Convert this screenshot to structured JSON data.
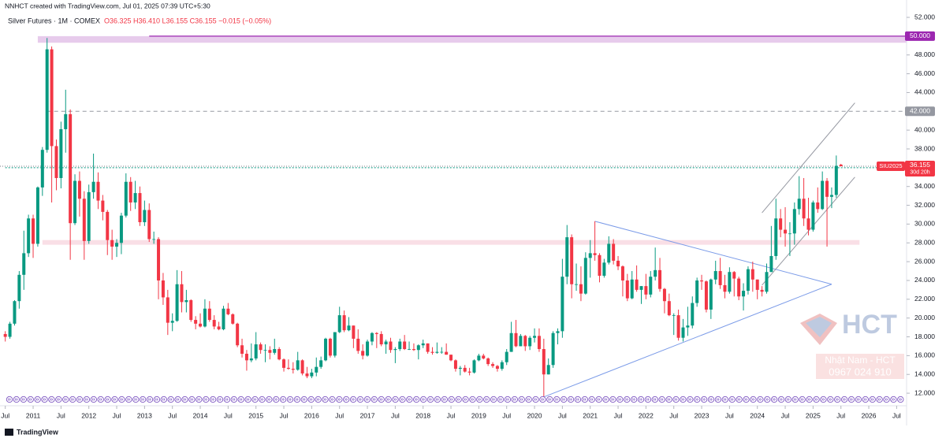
{
  "header": {
    "credit": "NNHCT created with TradingView.com, Jul 01, 2025 07:39 UTC+5:30",
    "symbol": "Silver Futures · 1M · COMEX",
    "ohlc": "O36.325 H36.410 L36.155 C36.155 −0.015 (−0.05%)"
  },
  "footer": {
    "brand": "TradingView"
  },
  "watermark": {
    "logo": "HCT",
    "name": "Nhật Nam - HCT",
    "phone": "0967 024 910"
  },
  "chart_data": {
    "type": "candlestick",
    "up_color": "#089981",
    "down_color": "#f23645",
    "x": [
      "2010-07",
      "2010-08",
      "2010-09",
      "2010-10",
      "2010-11",
      "2010-12",
      "2011-01",
      "2011-02",
      "2011-03",
      "2011-04",
      "2011-05",
      "2011-06",
      "2011-07",
      "2011-08",
      "2011-09",
      "2011-10",
      "2011-11",
      "2011-12",
      "2012-01",
      "2012-02",
      "2012-03",
      "2012-04",
      "2012-05",
      "2012-06",
      "2012-07",
      "2012-08",
      "2012-09",
      "2012-10",
      "2012-11",
      "2012-12",
      "2013-01",
      "2013-02",
      "2013-03",
      "2013-04",
      "2013-05",
      "2013-06",
      "2013-07",
      "2013-08",
      "2013-09",
      "2013-10",
      "2013-11",
      "2013-12",
      "2014-01",
      "2014-02",
      "2014-03",
      "2014-04",
      "2014-05",
      "2014-06",
      "2014-07",
      "2014-08",
      "2014-09",
      "2014-10",
      "2014-11",
      "2014-12",
      "2015-01",
      "2015-02",
      "2015-03",
      "2015-04",
      "2015-05",
      "2015-06",
      "2015-07",
      "2015-08",
      "2015-09",
      "2015-10",
      "2015-11",
      "2015-12",
      "2016-01",
      "2016-02",
      "2016-03",
      "2016-04",
      "2016-05",
      "2016-06",
      "2016-07",
      "2016-08",
      "2016-09",
      "2016-10",
      "2016-11",
      "2016-12",
      "2017-01",
      "2017-02",
      "2017-03",
      "2017-04",
      "2017-05",
      "2017-06",
      "2017-07",
      "2017-08",
      "2017-09",
      "2017-10",
      "2017-11",
      "2017-12",
      "2018-01",
      "2018-02",
      "2018-03",
      "2018-04",
      "2018-05",
      "2018-06",
      "2018-07",
      "2018-08",
      "2018-09",
      "2018-10",
      "2018-11",
      "2018-12",
      "2019-01",
      "2019-02",
      "2019-03",
      "2019-04",
      "2019-05",
      "2019-06",
      "2019-07",
      "2019-08",
      "2019-09",
      "2019-10",
      "2019-11",
      "2019-12",
      "2020-01",
      "2020-02",
      "2020-03",
      "2020-04",
      "2020-05",
      "2020-06",
      "2020-07",
      "2020-08",
      "2020-09",
      "2020-10",
      "2020-11",
      "2020-12",
      "2021-01",
      "2021-02",
      "2021-03",
      "2021-04",
      "2021-05",
      "2021-06",
      "2021-07",
      "2021-08",
      "2021-09",
      "2021-10",
      "2021-11",
      "2021-12",
      "2022-01",
      "2022-02",
      "2022-03",
      "2022-04",
      "2022-05",
      "2022-06",
      "2022-07",
      "2022-08",
      "2022-09",
      "2022-10",
      "2022-11",
      "2022-12",
      "2023-01",
      "2023-02",
      "2023-03",
      "2023-04",
      "2023-05",
      "2023-06",
      "2023-07",
      "2023-08",
      "2023-09",
      "2023-10",
      "2023-11",
      "2023-12",
      "2024-01",
      "2024-02",
      "2024-03",
      "2024-04",
      "2024-05",
      "2024-06",
      "2024-07",
      "2024-08",
      "2024-09",
      "2024-10",
      "2024-11",
      "2024-12",
      "2025-01",
      "2025-02",
      "2025-03",
      "2025-04",
      "2025-05",
      "2025-06",
      "2025-07"
    ],
    "open": [
      18.3,
      18.0,
      19.4,
      21.8,
      24.6,
      26.9,
      30.6,
      27.9,
      33.9,
      37.9,
      48.6,
      38.3,
      34.9,
      40.1,
      41.7,
      30.1,
      34.6,
      32.7,
      28.2,
      33.4,
      34.5,
      32.5,
      31.3,
      28.3,
      27.6,
      28.0,
      30.9,
      34.5,
      32.3,
      33.3,
      30.2,
      31.5,
      28.4,
      28.4,
      24.0,
      22.2,
      19.5,
      19.7,
      23.6,
      21.7,
      21.9,
      19.8,
      19.4,
      19.1,
      21.0,
      19.8,
      19.1,
      18.8,
      21.0,
      20.4,
      19.4,
      17.1,
      16.2,
      15.5,
      15.7,
      17.2,
      16.6,
      16.6,
      16.3,
      16.7,
      15.6,
      14.7,
      14.6,
      14.5,
      15.5,
      14.1,
      13.8,
      14.2,
      14.8,
      15.5,
      17.8,
      16.0,
      18.5,
      20.3,
      18.7,
      19.2,
      17.8,
      16.5,
      16.0,
      17.5,
      18.4,
      18.3,
      17.2,
      17.5,
      16.6,
      16.7,
      17.5,
      16.7,
      16.7,
      16.6,
      17.1,
      17.3,
      16.4,
      16.3,
      16.4,
      16.4,
      16.1,
      15.5,
      14.6,
      14.7,
      14.3,
      14.2,
      15.5,
      16.0,
      15.7,
      15.1,
      14.9,
      14.6,
      15.3,
      16.4,
      18.4,
      17.0,
      18.1,
      17.0,
      17.9,
      18.1,
      16.7,
      14.0,
      15.0,
      18.4,
      18.6,
      24.4,
      28.6,
      23.6,
      23.6,
      22.6,
      26.4,
      26.9,
      26.7,
      24.5,
      25.9,
      27.9,
      26.1,
      25.5,
      24.0,
      22.1,
      24.1,
      23.0,
      23.4,
      22.5,
      24.4,
      25.1,
      23.1,
      21.8,
      20.3,
      20.3,
      17.9,
      19.0,
      19.2,
      21.6,
      24.0,
      23.9,
      20.9,
      24.1,
      25.0,
      23.5,
      22.8,
      24.9,
      24.2,
      22.3,
      22.9,
      25.2,
      24.1,
      23.0,
      22.8,
      24.9,
      26.6,
      30.6,
      29.4,
      29.0,
      29.0,
      31.6,
      32.7,
      30.6,
      29.4,
      32.3,
      31.6,
      34.6,
      32.9,
      33.1,
      36.325
    ],
    "high": [
      18.6,
      19.6,
      21.9,
      25.0,
      29.3,
      31.0,
      31.0,
      34.0,
      38.2,
      49.8,
      48.9,
      39.0,
      40.9,
      44.3,
      42.2,
      35.3,
      35.6,
      33.5,
      34.2,
      37.5,
      35.5,
      33.1,
      31.5,
      29.4,
      28.4,
      31.2,
      35.4,
      35.0,
      34.6,
      34.0,
      32.5,
      32.2,
      29.2,
      28.6,
      24.8,
      23.0,
      20.5,
      25.1,
      25.0,
      23.0,
      22.0,
      20.2,
      20.5,
      22.0,
      21.8,
      20.3,
      19.6,
      21.3,
      21.6,
      20.5,
      19.5,
      17.8,
      16.6,
      17.3,
      18.5,
      17.4,
      17.2,
      17.0,
      17.8,
      16.9,
      15.7,
      15.6,
      15.3,
      16.4,
      15.6,
      14.8,
      14.6,
      15.8,
      15.9,
      17.9,
      17.9,
      18.5,
      21.2,
      20.8,
      20.1,
      19.2,
      18.8,
      17.2,
      17.7,
      18.5,
      18.5,
      18.6,
      17.7,
      17.9,
      16.9,
      17.8,
      18.2,
      17.5,
      17.3,
      17.2,
      17.7,
      17.3,
      16.9,
      17.4,
      16.9,
      17.3,
      16.1,
      15.6,
      14.9,
      15.0,
      14.7,
      15.6,
      16.2,
      16.2,
      15.8,
      15.3,
      15.0,
      15.5,
      16.7,
      19.6,
      19.8,
      18.3,
      18.2,
      18.1,
      18.9,
      18.9,
      17.8,
      15.7,
      18.6,
      18.9,
      26.3,
      29.9,
      28.9,
      25.8,
      25.5,
      27.0,
      28.3,
      30.3,
      26.9,
      26.3,
      28.7,
      28.4,
      26.6,
      25.6,
      24.7,
      25.0,
      25.6,
      23.4,
      24.7,
      25.0,
      27.5,
      26.4,
      23.2,
      22.6,
      20.5,
      20.9,
      19.9,
      21.2,
      22.3,
      24.3,
      24.6,
      24.0,
      24.2,
      26.1,
      26.4,
      24.6,
      25.4,
      25.0,
      24.4,
      23.7,
      25.5,
      26.0,
      24.1,
      23.4,
      25.8,
      29.8,
      32.7,
      31.6,
      31.8,
      30.2,
      32.3,
      35.1,
      34.9,
      32.8,
      32.5,
      33.9,
      35.6,
      34.9,
      33.9,
      37.3,
      36.41
    ],
    "low": [
      17.5,
      17.8,
      19.2,
      21.0,
      23.0,
      26.5,
      26.4,
      27.6,
      33.0,
      37.6,
      32.3,
      33.6,
      33.8,
      37.6,
      26.2,
      29.9,
      30.8,
      26.2,
      27.9,
      32.7,
      31.6,
      30.4,
      26.7,
      26.2,
      26.5,
      26.8,
      30.7,
      31.4,
      31.6,
      29.8,
      29.8,
      28.1,
      27.9,
      22.0,
      21.4,
      18.2,
      18.6,
      19.6,
      20.6,
      20.6,
      19.6,
      18.8,
      19.0,
      19.0,
      19.6,
      18.8,
      18.7,
      18.7,
      20.3,
      19.3,
      16.9,
      15.8,
      14.4,
      15.3,
      15.5,
      16.2,
      15.3,
      15.6,
      16.1,
      15.5,
      14.3,
      14.5,
      14.1,
      14.4,
      13.9,
      13.6,
      13.6,
      13.8,
      14.6,
      15.4,
      15.8,
      15.8,
      18.4,
      18.5,
      18.6,
      16.8,
      16.2,
      15.6,
      15.9,
      17.1,
      16.8,
      17.0,
      16.2,
      16.3,
      15.2,
      16.5,
      16.6,
      16.6,
      16.5,
      15.6,
      16.8,
      16.2,
      16.1,
      16.2,
      16.2,
      16.1,
      15.4,
      14.3,
      13.9,
      14.2,
      13.9,
      14.1,
      15.4,
      15.6,
      14.9,
      14.7,
      14.3,
      14.4,
      15.0,
      16.4,
      16.9,
      17.0,
      16.5,
      16.6,
      17.4,
      16.4,
      11.6,
      14.0,
      14.7,
      17.2,
      17.9,
      23.6,
      22.1,
      22.9,
      21.8,
      22.5,
      24.3,
      26.1,
      23.8,
      24.3,
      25.7,
      25.7,
      25.1,
      22.3,
      21.8,
      22.0,
      22.8,
      21.5,
      22.0,
      22.2,
      24.0,
      22.8,
      20.5,
      20.2,
      18.2,
      17.6,
      17.5,
      18.1,
      18.9,
      21.2,
      23.0,
      20.6,
      19.9,
      23.6,
      23.1,
      22.1,
      22.6,
      22.3,
      21.9,
      20.8,
      22.5,
      22.8,
      22.0,
      22.3,
      22.6,
      24.9,
      26.2,
      28.6,
      27.6,
      26.6,
      27.8,
      31.0,
      29.8,
      28.8,
      29.2,
      31.2,
      31.5,
      27.6,
      31.7,
      32.8,
      36.155
    ],
    "close": [
      18.0,
      19.4,
      21.8,
      24.6,
      26.9,
      30.6,
      27.9,
      33.9,
      37.9,
      48.6,
      38.3,
      34.9,
      40.1,
      41.7,
      30.1,
      34.6,
      32.7,
      28.2,
      33.4,
      34.5,
      32.5,
      31.3,
      28.3,
      27.6,
      28.0,
      30.9,
      34.5,
      32.3,
      33.3,
      30.2,
      31.5,
      28.4,
      28.4,
      24.0,
      22.2,
      19.5,
      19.7,
      23.6,
      21.7,
      21.9,
      19.8,
      19.4,
      19.1,
      21.0,
      19.8,
      19.1,
      18.8,
      21.0,
      20.4,
      19.4,
      17.1,
      16.2,
      15.5,
      15.7,
      17.2,
      16.6,
      16.6,
      16.3,
      16.7,
      15.6,
      14.7,
      14.6,
      14.5,
      15.5,
      14.1,
      13.8,
      14.2,
      14.8,
      15.5,
      17.8,
      16.0,
      18.5,
      20.3,
      18.7,
      19.2,
      17.8,
      16.5,
      16.0,
      17.5,
      18.4,
      18.3,
      17.2,
      17.5,
      16.6,
      16.7,
      17.5,
      16.7,
      16.7,
      16.6,
      17.1,
      17.3,
      16.4,
      16.3,
      16.4,
      16.4,
      16.1,
      15.5,
      14.6,
      14.7,
      14.3,
      14.2,
      15.5,
      16.0,
      15.7,
      15.1,
      14.9,
      14.6,
      15.3,
      16.4,
      18.4,
      17.0,
      18.1,
      17.0,
      17.9,
      18.1,
      16.7,
      14.0,
      15.0,
      18.4,
      18.6,
      24.4,
      28.6,
      23.6,
      23.6,
      22.6,
      26.4,
      26.9,
      26.7,
      24.5,
      25.9,
      27.9,
      26.1,
      25.5,
      24.0,
      22.1,
      24.1,
      23.0,
      23.4,
      22.5,
      24.4,
      25.1,
      23.1,
      21.8,
      20.3,
      20.3,
      17.9,
      19.0,
      19.2,
      21.6,
      24.0,
      23.9,
      20.9,
      24.1,
      25.0,
      23.5,
      22.8,
      24.9,
      24.2,
      22.3,
      22.9,
      25.2,
      24.1,
      23.0,
      22.8,
      24.9,
      26.6,
      30.6,
      29.4,
      29.0,
      29.0,
      31.6,
      32.7,
      30.6,
      29.4,
      32.3,
      31.6,
      34.6,
      32.9,
      33.1,
      36.2,
      36.155
    ],
    "ylim": [
      11,
      52.8
    ],
    "yticks": [
      {
        "value": 12,
        "label": "12.000"
      },
      {
        "value": 14,
        "label": "14.000"
      },
      {
        "value": 16,
        "label": "16.000"
      },
      {
        "value": 18,
        "label": "18.000"
      },
      {
        "value": 20,
        "label": "20.000"
      },
      {
        "value": 22,
        "label": "22.000"
      },
      {
        "value": 24,
        "label": "24.000"
      },
      {
        "value": 26,
        "label": "26.000"
      },
      {
        "value": 28,
        "label": "28.000"
      },
      {
        "value": 30,
        "label": "30.000"
      },
      {
        "value": 32,
        "label": "32.000"
      },
      {
        "value": 34,
        "label": "34.000"
      },
      {
        "value": 36,
        "label": "36.000"
      },
      {
        "value": 38,
        "label": "38.000"
      },
      {
        "value": 40,
        "label": "40.000"
      },
      {
        "value": 42,
        "label": "42.000"
      },
      {
        "value": 44,
        "label": "44.000"
      },
      {
        "value": 46,
        "label": "46.000"
      },
      {
        "value": 48,
        "label": "48.000"
      },
      {
        "value": 50,
        "label": "50.000"
      },
      {
        "value": 52,
        "label": "52.000"
      }
    ],
    "xticks": [
      {
        "value": "2010-07",
        "label": "Jul"
      },
      {
        "value": "2011-01",
        "label": "2011"
      },
      {
        "value": "2011-07",
        "label": "Jul"
      },
      {
        "value": "2012-01",
        "label": "2012"
      },
      {
        "value": "2012-07",
        "label": "Jul"
      },
      {
        "value": "2013-01",
        "label": "2013"
      },
      {
        "value": "2013-07",
        "label": "Jul"
      },
      {
        "value": "2014-01",
        "label": "2014"
      },
      {
        "value": "2014-07",
        "label": "Jul"
      },
      {
        "value": "2015-01",
        "label": "2015"
      },
      {
        "value": "2015-07",
        "label": "Jul"
      },
      {
        "value": "2016-01",
        "label": "2016"
      },
      {
        "value": "2016-07",
        "label": "Jul"
      },
      {
        "value": "2017-01",
        "label": "2017"
      },
      {
        "value": "2017-07",
        "label": "Jul"
      },
      {
        "value": "2018-01",
        "label": "2018"
      },
      {
        "value": "2018-07",
        "label": "Jul"
      },
      {
        "value": "2019-01",
        "label": "2019"
      },
      {
        "value": "2019-07",
        "label": "Jul"
      },
      {
        "value": "2020-01",
        "label": "2020"
      },
      {
        "value": "2020-07",
        "label": "Jul"
      },
      {
        "value": "2021-01",
        "label": "2021"
      },
      {
        "value": "2021-07",
        "label": "Jul"
      },
      {
        "value": "2022-01",
        "label": "2022"
      },
      {
        "value": "2022-07",
        "label": "Jul"
      },
      {
        "value": "2023-01",
        "label": "2023"
      },
      {
        "value": "2023-07",
        "label": "Jul"
      },
      {
        "value": "2024-01",
        "label": "2024"
      },
      {
        "value": "2024-07",
        "label": "Jul"
      },
      {
        "value": "2025-01",
        "label": "2025"
      },
      {
        "value": "2025-07",
        "label": "Jul"
      },
      {
        "value": "2026-01",
        "label": "2026"
      },
      {
        "value": "2026-07",
        "label": "Jul"
      }
    ],
    "zones": [
      {
        "from": 49.3,
        "to": 50.0,
        "start": "2011-02",
        "color": "#e1bee7"
      },
      {
        "from": 27.8,
        "to": 28.3,
        "start": "2011-03",
        "end": "2025-11",
        "color": "#f8d7e0"
      }
    ],
    "levels": [
      {
        "value": 50,
        "label": "50.000",
        "color": "#9c27b0",
        "start": "2013-02",
        "style": "solid"
      },
      {
        "value": 42,
        "label": "42.000",
        "color": "#9598a1",
        "start": "2011-04",
        "style": "dashed"
      },
      {
        "value": 36,
        "label": "36.000",
        "color": "#089981",
        "start": "2010-07",
        "style": "dotted"
      }
    ],
    "price": {
      "value": 36.155,
      "label": "36.155",
      "symbol": "SIU2025",
      "countdown": "30d 20h",
      "color": "#f23645"
    },
    "trendlines": [
      {
        "from": [
          "2021-02",
          30.3
        ],
        "to": [
          "2025-05",
          23.6
        ],
        "color": "#7b9be8"
      },
      {
        "from": [
          "2020-03",
          11.6
        ],
        "to": [
          "2025-05",
          23.6
        ],
        "color": "#7b9be8"
      },
      {
        "from": [
          "2024-02",
          31.2
        ],
        "to": [
          "2025-10",
          42.9
        ],
        "color": "#9598a1"
      },
      {
        "from": [
          "2024-02",
          23.5
        ],
        "to": [
          "2025-10",
          35.0
        ],
        "color": "#9598a1"
      }
    ]
  }
}
